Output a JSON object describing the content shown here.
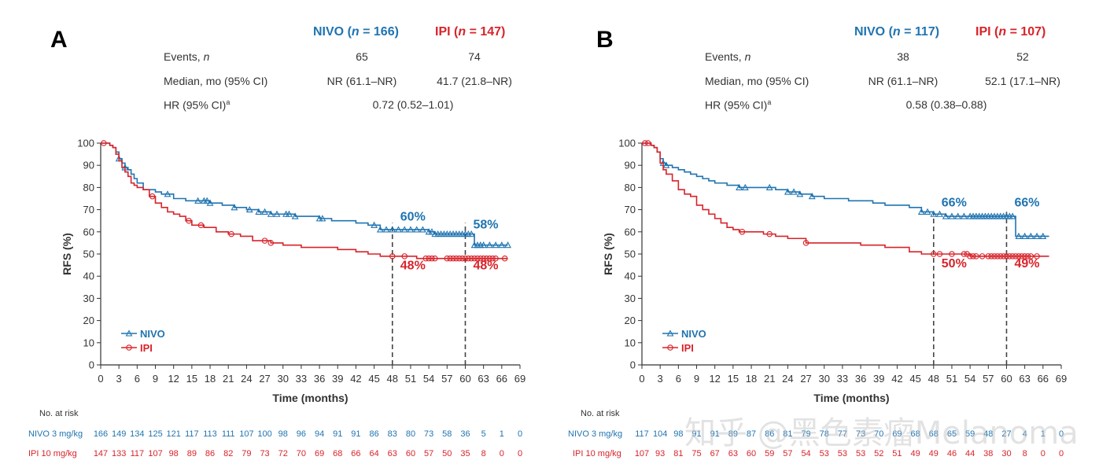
{
  "panels": [
    {
      "letter": "A",
      "nivo_header": {
        "a": "NIVO (",
        "n": "n",
        "b": " = 166)"
      },
      "ipi_header": {
        "a": "IPI (",
        "n": "n",
        "b": " = 147)"
      },
      "rows": {
        "events_label": "Events, ",
        "events_label_n": "n",
        "events_nivo": "65",
        "events_ipi": "74",
        "median_label": "Median, mo (95% CI)",
        "median_nivo": "NR (61.1–NR)",
        "median_ipi": "41.7 (21.8–NR)",
        "hr_label": "HR (95% CI)",
        "hr_sup": "a",
        "hr_value": "0.72 (0.52–1.01)"
      },
      "risk": {
        "title": "No. at risk",
        "nivo_label": "NIVO 3 mg/kg",
        "ipi_label": "IPI 10 mg/kg",
        "nivo": [
          "166",
          "149",
          "134",
          "125",
          "121",
          "117",
          "113",
          "111",
          "107",
          "100",
          "98",
          "96",
          "94",
          "91",
          "91",
          "86",
          "83",
          "80",
          "73",
          "58",
          "36",
          "5",
          "1",
          "0"
        ],
        "ipi": [
          "147",
          "133",
          "117",
          "107",
          "98",
          "89",
          "86",
          "82",
          "79",
          "73",
          "72",
          "70",
          "69",
          "68",
          "66",
          "64",
          "63",
          "60",
          "57",
          "50",
          "35",
          "8",
          "0",
          "0"
        ]
      }
    },
    {
      "letter": "B",
      "nivo_header": {
        "a": "NIVO (",
        "n": "n",
        "b": " = 117)"
      },
      "ipi_header": {
        "a": "IPI (",
        "n": "n",
        "b": " = 107)"
      },
      "rows": {
        "events_label": "Events, ",
        "events_label_n": "n",
        "events_nivo": "38",
        "events_ipi": "52",
        "median_label": "Median, mo (95% CI)",
        "median_nivo": "NR (61.1–NR)",
        "median_ipi": "52.1 (17.1–NR)",
        "hr_label": "HR (95% CI)",
        "hr_sup": "a",
        "hr_value": "0.58 (0.38–0.88)"
      },
      "risk": {
        "title": "No. at risk",
        "nivo_label": "NIVO 3 mg/kg",
        "ipi_label": "IPI 10 mg/kg",
        "nivo": [
          "117",
          "104",
          "98",
          "91",
          "91",
          "89",
          "87",
          "86",
          "81",
          "79",
          "78",
          "77",
          "73",
          "70",
          "69",
          "68",
          "68",
          "65",
          "59",
          "48",
          "27",
          "4",
          "1",
          "0"
        ],
        "ipi": [
          "107",
          "93",
          "81",
          "75",
          "67",
          "63",
          "60",
          "59",
          "57",
          "54",
          "53",
          "53",
          "53",
          "52",
          "51",
          "49",
          "49",
          "46",
          "44",
          "38",
          "30",
          "8",
          "0",
          "0"
        ]
      }
    }
  ],
  "watermark": "知乎 @黑色素瘤Melanoma",
  "colors": {
    "nivo": "#1f74b1",
    "ipi": "#d8232a",
    "axis": "#333333",
    "dash": "#444444"
  },
  "chart_data": [
    {
      "type": "line",
      "title": "A",
      "xlabel": "Time (months)",
      "ylabel": "RFS (%)",
      "xlim": [
        0,
        69
      ],
      "ylim": [
        0,
        100
      ],
      "xticks": [
        "0",
        "3",
        "6",
        "9",
        "12",
        "15",
        "18",
        "21",
        "24",
        "27",
        "30",
        "33",
        "36",
        "39",
        "42",
        "45",
        "48",
        "51",
        "54",
        "57",
        "60",
        "63",
        "66",
        "69"
      ],
      "yticks": [
        "0",
        "10",
        "20",
        "30",
        "40",
        "50",
        "60",
        "70",
        "80",
        "90",
        "100"
      ],
      "legend": [
        "NIVO",
        "IPI"
      ],
      "legend_position": "bottom-left",
      "vlines": [
        48,
        60
      ],
      "annotations": {
        "nivo": [
          "60%",
          "58%"
        ],
        "ipi": [
          "48%",
          "48%"
        ]
      },
      "series": [
        {
          "name": "NIVO",
          "x": [
            0,
            1.5,
            2,
            2.5,
            3,
            3.5,
            4,
            4.5,
            5,
            5.5,
            6,
            7,
            8,
            9,
            10,
            12,
            14,
            16,
            18,
            20,
            22,
            24,
            26,
            28,
            30,
            32,
            34,
            36,
            38,
            40,
            42,
            44,
            46,
            48,
            50,
            52,
            54,
            55,
            56,
            58,
            60,
            61,
            61.5,
            62,
            64,
            67
          ],
          "y": [
            100,
            99,
            98,
            96,
            93,
            91,
            89,
            88,
            86,
            84,
            82,
            79,
            79,
            78,
            77,
            75,
            74,
            74,
            73,
            72,
            71,
            70,
            69,
            68,
            68,
            67,
            67,
            66,
            65,
            65,
            64,
            63,
            61,
            61,
            61,
            61,
            60,
            59,
            59,
            59,
            59,
            59,
            54,
            54,
            54,
            54
          ],
          "censor_x": [
            3,
            4,
            11,
            16,
            17,
            17.5,
            18,
            22,
            24.5,
            26,
            27,
            28,
            29,
            30.5,
            31,
            32,
            36,
            36.5,
            45,
            46,
            47,
            48,
            49,
            50,
            51,
            52,
            53,
            54,
            54.5,
            55,
            55.5,
            56,
            56.5,
            57,
            57.5,
            58,
            58.5,
            59,
            59.5,
            60,
            60.5,
            61,
            61.5,
            62,
            62.5,
            63,
            64,
            65,
            66,
            67
          ]
        },
        {
          "name": "IPI",
          "x": [
            0,
            1.5,
            2,
            2.5,
            3,
            3.5,
            4,
            4.5,
            5,
            5.5,
            6,
            7,
            8,
            9,
            10,
            11,
            12,
            13,
            14,
            15,
            17,
            19,
            21,
            23,
            25,
            28,
            30,
            33,
            36,
            39,
            42,
            44,
            46,
            48,
            50,
            52,
            54,
            58,
            62,
            67
          ],
          "y": [
            100,
            99,
            98,
            95,
            92,
            89,
            87,
            85,
            82,
            81,
            80,
            79,
            76,
            73,
            71,
            69,
            68,
            67,
            65,
            63,
            62,
            60,
            59,
            58,
            56,
            55,
            54,
            53,
            53,
            52,
            51,
            50,
            49,
            49,
            49,
            48,
            48,
            48,
            48,
            48
          ],
          "censor_x": [
            0.5,
            8.5,
            14.5,
            16.5,
            21.5,
            27,
            28,
            48,
            50,
            53.5,
            54,
            54.5,
            55,
            57,
            57.5,
            58,
            58.5,
            59,
            59.5,
            60,
            60.5,
            61,
            61.5,
            62,
            62.5,
            63,
            63.5,
            64,
            64.5,
            65,
            66.5
          ]
        }
      ]
    },
    {
      "type": "line",
      "title": "B",
      "xlabel": "Time (months)",
      "ylabel": "RFS (%)",
      "xlim": [
        0,
        69
      ],
      "ylim": [
        0,
        100
      ],
      "xticks": [
        "0",
        "3",
        "6",
        "9",
        "12",
        "15",
        "18",
        "21",
        "24",
        "27",
        "30",
        "33",
        "36",
        "39",
        "42",
        "45",
        "48",
        "51",
        "54",
        "57",
        "60",
        "63",
        "66",
        "69"
      ],
      "yticks": [
        "0",
        "10",
        "20",
        "30",
        "40",
        "50",
        "60",
        "70",
        "80",
        "90",
        "100"
      ],
      "legend": [
        "NIVO",
        "IPI"
      ],
      "legend_position": "bottom-left",
      "vlines": [
        48,
        60
      ],
      "annotations": {
        "nivo": [
          "66%",
          "66%"
        ],
        "ipi": [
          "50%",
          "49%"
        ]
      },
      "series": [
        {
          "name": "NIVO",
          "x": [
            0,
            1.5,
            2,
            2.5,
            3,
            3.5,
            4,
            5,
            6,
            7,
            8,
            9,
            10,
            11,
            12,
            14,
            16,
            18,
            20,
            22,
            24,
            26,
            28,
            30,
            32,
            34,
            36,
            38,
            40,
            42,
            44,
            46,
            48,
            50,
            52,
            54,
            56,
            58,
            60,
            61,
            61.5,
            62,
            64,
            67
          ],
          "y": [
            100,
            99,
            98,
            96,
            93,
            91,
            90,
            89,
            88,
            87,
            86,
            85,
            84,
            83,
            82,
            81,
            80,
            80,
            80,
            79,
            78,
            77,
            76,
            75,
            75,
            74,
            74,
            73,
            72,
            72,
            71,
            69,
            68,
            67,
            67,
            67,
            67,
            67,
            67,
            67,
            58,
            58,
            58,
            58
          ],
          "censor_x": [
            3.5,
            4,
            16,
            17,
            21,
            24,
            25,
            26,
            28,
            46,
            47,
            48,
            49,
            50,
            51,
            52,
            53,
            54,
            54.5,
            55,
            55.5,
            56,
            56.5,
            57,
            57.5,
            58,
            58.5,
            59,
            59.5,
            60,
            60.5,
            61,
            62,
            63,
            64,
            65,
            66
          ]
        },
        {
          "name": "IPI",
          "x": [
            0,
            1.5,
            2,
            2.5,
            3,
            3.5,
            4,
            5,
            6,
            7,
            8,
            9,
            10,
            11,
            12,
            13,
            14,
            15,
            16,
            18,
            20,
            22,
            24,
            27,
            30,
            36,
            40,
            44,
            46,
            48,
            50,
            52,
            54,
            58,
            60,
            62,
            67
          ],
          "y": [
            100,
            99,
            98,
            96,
            91,
            88,
            86,
            83,
            79,
            77,
            76,
            72,
            70,
            68,
            66,
            64,
            62,
            61,
            60,
            60,
            59,
            58,
            57,
            55,
            55,
            54,
            53,
            51,
            50,
            50,
            50,
            50,
            49,
            49,
            49,
            49,
            49
          ],
          "censor_x": [
            0.5,
            1,
            16.5,
            21,
            27,
            48,
            49,
            51,
            53,
            53.5,
            54,
            54.5,
            55,
            56,
            57,
            57.5,
            58,
            58.5,
            59,
            59.5,
            60,
            60.5,
            61,
            61.5,
            62,
            62.5,
            63,
            63.5,
            64,
            65
          ]
        }
      ]
    }
  ]
}
